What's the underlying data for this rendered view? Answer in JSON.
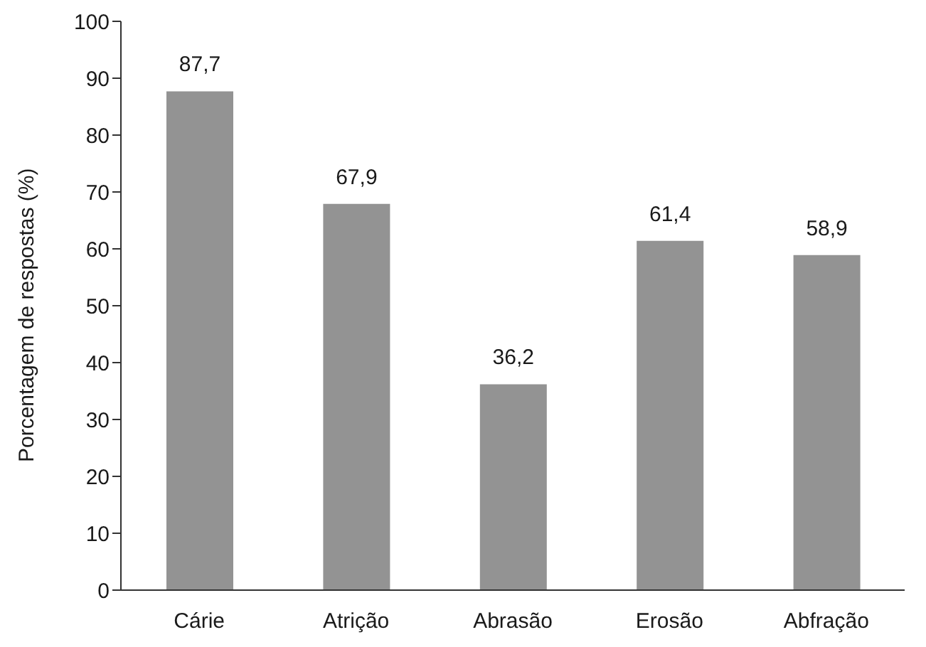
{
  "chart_data": {
    "type": "bar",
    "ylabel": "Porcentagem de respostas (%)",
    "categories": [
      "Cárie",
      "Atrição",
      "Abrasão",
      "Erosão",
      "Abfração"
    ],
    "values": [
      87.7,
      67.9,
      36.2,
      61.4,
      58.9
    ],
    "value_labels": [
      "87,7",
      "67,9",
      "36,2",
      "61,4",
      "58,9"
    ],
    "color": "#939393",
    "ylim": [
      0,
      100
    ],
    "yticks": [
      0,
      10,
      20,
      30,
      40,
      50,
      60,
      70,
      80,
      90,
      100
    ],
    "grid": false
  }
}
